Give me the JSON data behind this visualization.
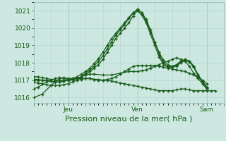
{
  "xlabel": "Pression niveau de la mer( hPa )",
  "ylim": [
    1015.7,
    1021.5
  ],
  "yticks": [
    1016,
    1017,
    1018,
    1019,
    1020,
    1021
  ],
  "bg_color": "#cce8e0",
  "grid_color_major": "#b8d8d0",
  "grid_color_minor": "#c8e2da",
  "line_color": "#1a5c1a",
  "marker": "+",
  "xlim": [
    0,
    132
  ],
  "x_jeu": 24,
  "x_ven": 72,
  "x_sam": 120,
  "series": [
    {
      "x": [
        0,
        3,
        6,
        9,
        12,
        15,
        18,
        21,
        24,
        27,
        30,
        33,
        36,
        39,
        42,
        45,
        48,
        51,
        54,
        57,
        60,
        63,
        66,
        69,
        72,
        75,
        78,
        81,
        84,
        87,
        90,
        93,
        96,
        99,
        102,
        105,
        108,
        111,
        114,
        117,
        120,
        123,
        126
      ],
      "y": [
        1016.9,
        1016.85,
        1016.8,
        1016.75,
        1016.7,
        1016.7,
        1016.7,
        1016.75,
        1016.8,
        1016.9,
        1017.0,
        1017.05,
        1017.1,
        1017.1,
        1017.05,
        1017.0,
        1017.0,
        1017.0,
        1016.95,
        1016.9,
        1016.85,
        1016.8,
        1016.75,
        1016.7,
        1016.65,
        1016.6,
        1016.55,
        1016.5,
        1016.45,
        1016.4,
        1016.4,
        1016.4,
        1016.4,
        1016.45,
        1016.5,
        1016.5,
        1016.45,
        1016.4,
        1016.4,
        1016.4,
        1016.4,
        1016.4,
        1016.4
      ]
    },
    {
      "x": [
        0,
        3,
        9,
        15,
        18,
        21,
        24,
        27,
        30,
        33,
        36,
        39,
        42,
        48,
        54,
        60,
        66,
        69,
        72,
        75,
        78,
        81,
        84,
        87,
        90,
        93,
        96,
        99,
        102,
        105,
        108,
        111,
        114,
        117,
        120
      ],
      "y": [
        1016.5,
        1016.6,
        1016.9,
        1017.1,
        1017.15,
        1017.1,
        1017.05,
        1017.05,
        1017.1,
        1017.2,
        1017.3,
        1017.35,
        1017.35,
        1017.3,
        1017.3,
        1017.4,
        1017.5,
        1017.5,
        1017.5,
        1017.55,
        1017.6,
        1017.7,
        1017.8,
        1017.9,
        1018.0,
        1018.1,
        1018.2,
        1018.3,
        1018.2,
        1018.1,
        1017.8,
        1017.4,
        1017.1,
        1016.8,
        1016.5
      ]
    },
    {
      "x": [
        0,
        3,
        6,
        9,
        12,
        15,
        18,
        21,
        24,
        27,
        30,
        33,
        36,
        39,
        42,
        45,
        48,
        51,
        54,
        57,
        60,
        63,
        66,
        69,
        72,
        75,
        78,
        81,
        84,
        87,
        90,
        93,
        96,
        99,
        102,
        105,
        108,
        111,
        114,
        117,
        120
      ],
      "y": [
        1017.2,
        1017.2,
        1017.15,
        1017.1,
        1017.05,
        1017.0,
        1017.0,
        1017.0,
        1017.0,
        1017.05,
        1017.1,
        1017.2,
        1017.3,
        1017.5,
        1017.7,
        1017.9,
        1018.2,
        1018.6,
        1019.0,
        1019.4,
        1019.7,
        1020.0,
        1020.3,
        1020.7,
        1021.0,
        1020.8,
        1020.4,
        1019.8,
        1019.2,
        1018.6,
        1018.15,
        1017.9,
        1017.8,
        1017.8,
        1018.0,
        1018.15,
        1018.1,
        1017.8,
        1017.3,
        1016.95,
        1016.6
      ]
    },
    {
      "x": [
        0,
        3,
        6,
        9,
        12,
        15,
        18,
        21,
        24,
        27,
        30,
        33,
        36,
        39,
        42,
        45,
        48,
        51,
        54,
        57,
        60,
        63,
        66,
        69,
        72,
        75,
        78,
        81,
        84,
        87,
        90,
        93,
        96,
        99,
        102,
        105,
        108,
        111,
        114,
        117,
        120
      ],
      "y": [
        1017.0,
        1017.0,
        1017.0,
        1017.0,
        1016.95,
        1016.9,
        1016.9,
        1016.95,
        1017.0,
        1017.05,
        1017.1,
        1017.2,
        1017.4,
        1017.6,
        1017.8,
        1018.1,
        1018.4,
        1018.8,
        1019.2,
        1019.6,
        1019.9,
        1020.2,
        1020.55,
        1020.85,
        1021.1,
        1020.9,
        1020.5,
        1019.9,
        1019.2,
        1018.5,
        1018.0,
        1017.8,
        1017.8,
        1017.9,
        1018.1,
        1018.2,
        1018.1,
        1017.8,
        1017.3,
        1016.95,
        1016.6
      ]
    },
    {
      "x": [
        0,
        3,
        6,
        9,
        12,
        15,
        18,
        21,
        24,
        27,
        30,
        33,
        36,
        39,
        42,
        45,
        48,
        51,
        54,
        57,
        60,
        63,
        66,
        69,
        72,
        75,
        78,
        81,
        84,
        87,
        90,
        93,
        96,
        99,
        102,
        105,
        108,
        111,
        114,
        117,
        120
      ],
      "y": [
        1017.05,
        1017.05,
        1017.0,
        1017.0,
        1016.95,
        1016.9,
        1016.9,
        1016.95,
        1017.0,
        1017.1,
        1017.2,
        1017.35,
        1017.5,
        1017.7,
        1017.95,
        1018.25,
        1018.6,
        1019.0,
        1019.4,
        1019.7,
        1020.0,
        1020.3,
        1020.6,
        1020.9,
        1021.0,
        1020.75,
        1020.3,
        1019.65,
        1019.0,
        1018.35,
        1017.9,
        1017.75,
        1017.75,
        1017.85,
        1018.05,
        1018.15,
        1018.05,
        1017.75,
        1017.25,
        1016.9,
        1016.55
      ]
    },
    {
      "x": [
        0,
        6,
        12,
        15,
        18,
        21,
        24,
        27,
        30,
        33,
        36,
        39,
        42,
        45,
        48,
        51,
        54,
        57,
        60,
        63,
        66,
        69,
        72,
        75,
        78,
        81,
        84,
        87,
        90,
        93,
        96,
        99,
        102,
        105,
        108,
        111,
        114,
        117,
        120
      ],
      "y": [
        1016.0,
        1016.2,
        1016.7,
        1016.9,
        1017.1,
        1017.15,
        1017.1,
        1017.1,
        1017.1,
        1017.1,
        1017.1,
        1017.1,
        1017.05,
        1017.05,
        1017.0,
        1017.05,
        1017.1,
        1017.2,
        1017.35,
        1017.5,
        1017.65,
        1017.8,
        1017.85,
        1017.85,
        1017.85,
        1017.85,
        1017.85,
        1017.8,
        1017.75,
        1017.7,
        1017.65,
        1017.6,
        1017.55,
        1017.5,
        1017.4,
        1017.3,
        1017.15,
        1017.0,
        1016.8
      ]
    }
  ],
  "label_fontsize": 6.5,
  "xlabel_fontsize": 8
}
